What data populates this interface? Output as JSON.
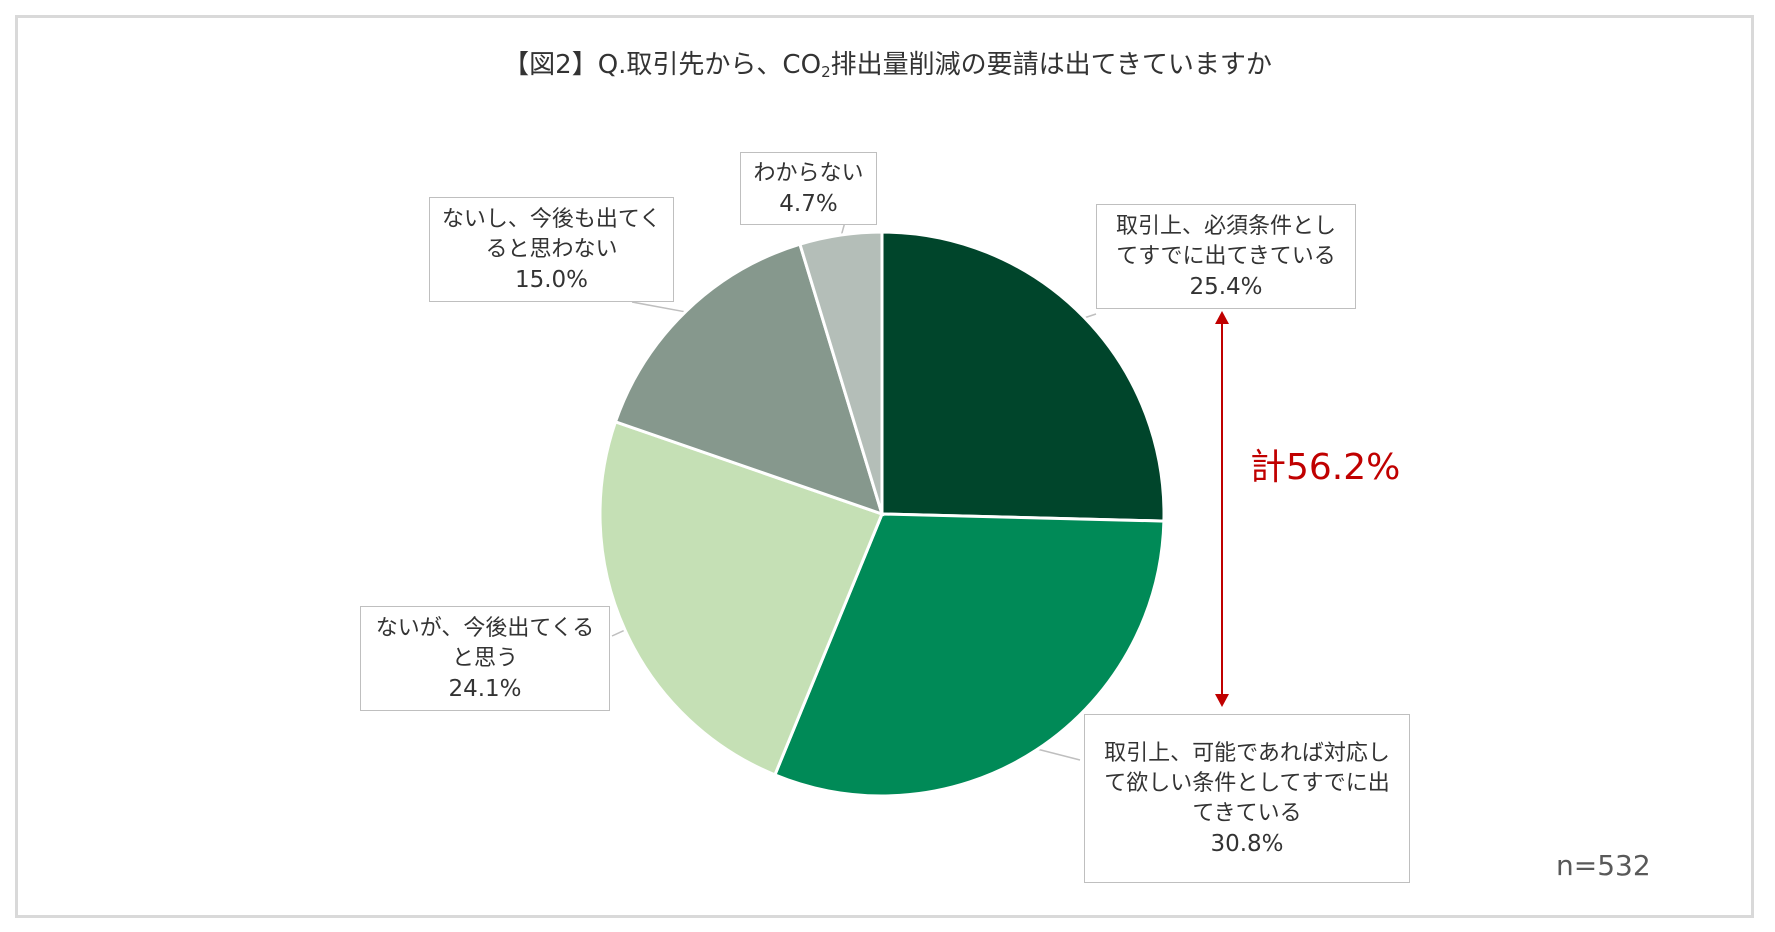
{
  "title": {
    "prefix": "【図2】Q.取引先から、CO",
    "subscript": "2",
    "suffix": "排出量削減の要請は出てきていますか"
  },
  "chart_data": {
    "type": "pie",
    "start_angle_deg": 0,
    "direction": "clockwise",
    "slices": [
      {
        "label": "取引上、必須条件としてすでに出てきている",
        "label_lines": [
          "取引上、必須条件とし",
          "てすでに出てきている"
        ],
        "value": 25.4,
        "value_text": "25.4%",
        "color": "#00452b"
      },
      {
        "label": "取引上、可能であれば対応して欲しい条件としてすでに出てきている",
        "label_lines": [
          "取引上、可能であれば対応し",
          "て欲しい条件としてすでに出",
          "てきている"
        ],
        "value": 30.8,
        "value_text": "30.8%",
        "color": "#008a57"
      },
      {
        "label": "ないが、今後出てくると思う",
        "label_lines": [
          "ないが、今後出てくる",
          "と思う"
        ],
        "value": 24.1,
        "value_text": "24.1%",
        "color": "#c5e0b5"
      },
      {
        "label": "ないし、今後も出てくると思わない",
        "label_lines": [
          "ないし、今後も出てく",
          "ると思わない"
        ],
        "value": 15.0,
        "value_text": "15.0%",
        "color": "#86988d"
      },
      {
        "label": "わからない",
        "label_lines": [
          "わからない"
        ],
        "value": 4.7,
        "value_text": "4.7%",
        "color": "#b4beb8"
      }
    ],
    "total_annotation": "計56.2%",
    "total_color": "#c00000",
    "sample_size": "n=532"
  }
}
